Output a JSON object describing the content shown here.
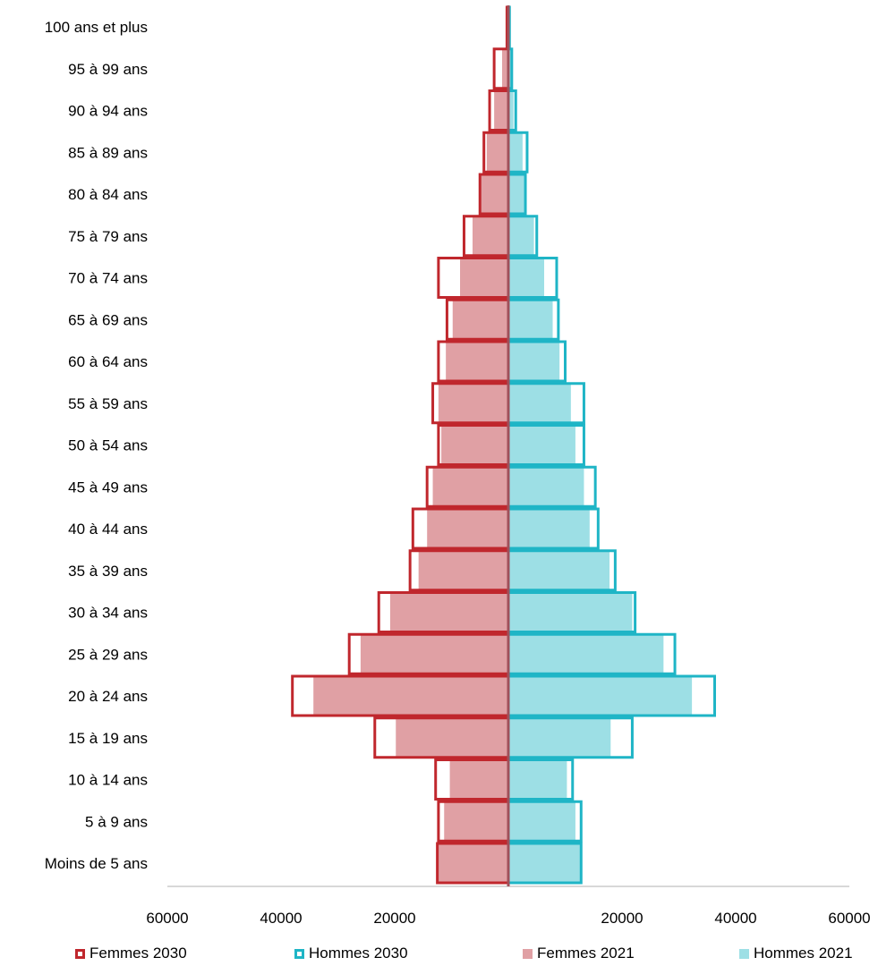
{
  "chart_data": {
    "type": "bar",
    "orientation": "horizontal",
    "subtype": "population-pyramid",
    "categories": [
      "Moins de 5 ans",
      "5 à 9 ans",
      "10 à 14 ans",
      "15 à 19 ans",
      "20 à 24 ans",
      "25 à 29 ans",
      "30 à 34 ans",
      "35 à 39 ans",
      "40 à 44 ans",
      "45 à 49 ans",
      "50 à 54 ans",
      "55 à 59 ans",
      "60 à 64 ans",
      "65 à 69 ans",
      "70 à 74 ans",
      "75 à 79 ans",
      "80 à 84 ans",
      "85 à 89 ans",
      "90 à 94 ans",
      "95 à 99 ans",
      "100 ans et plus"
    ],
    "series": [
      {
        "name": "Femmes 2030",
        "side": "left",
        "style": "outline",
        "color": "#c0272d",
        "values": [
          12500,
          12300,
          12800,
          23500,
          38000,
          28000,
          22800,
          17300,
          16800,
          14300,
          12300,
          13300,
          12300,
          10800,
          12300,
          7800,
          5000,
          4300,
          3300,
          2500,
          250
        ]
      },
      {
        "name": "Hommes 2030",
        "side": "right",
        "style": "outline",
        "color": "#1fb5c6",
        "values": [
          12800,
          12800,
          11300,
          21800,
          36300,
          29300,
          22300,
          18800,
          15800,
          15300,
          13300,
          13300,
          10000,
          8800,
          8500,
          5000,
          3000,
          3300,
          1300,
          600,
          200
        ]
      },
      {
        "name": "Femmes 2021",
        "side": "left",
        "style": "fill",
        "color": "#e0a0a4",
        "values": [
          12500,
          11300,
          10300,
          19800,
          34300,
          26000,
          20800,
          15800,
          14300,
          13300,
          11800,
          12300,
          11000,
          9800,
          8500,
          6300,
          4800,
          3800,
          2500,
          1100,
          150
        ]
      },
      {
        "name": "Hommes 2021",
        "side": "right",
        "style": "fill",
        "color": "#9ddfe5",
        "values": [
          12800,
          11800,
          10300,
          18000,
          32300,
          27300,
          21800,
          17800,
          14300,
          13300,
          11800,
          11000,
          9000,
          7800,
          6300,
          4500,
          2800,
          2500,
          900,
          400,
          100
        ]
      }
    ],
    "x_tick_labels": [
      "60000",
      "40000",
      "20000",
      "20000",
      "40000",
      "60000"
    ],
    "x_range": [
      -60000,
      60000
    ],
    "legend": [
      {
        "label": "Femmes 2030",
        "swatch": "outline",
        "color": "#c0272d"
      },
      {
        "label": "Hommes 2030",
        "swatch": "outline",
        "color": "#1fb5c6"
      },
      {
        "label": "Femmes 2021",
        "swatch": "fill",
        "color": "#e0a0a4"
      },
      {
        "label": "Hommes 2021",
        "swatch": "fill",
        "color": "#9ddfe5"
      }
    ],
    "legend_position": "bottom",
    "center_line_color": "#a0505a",
    "grid": false
  }
}
